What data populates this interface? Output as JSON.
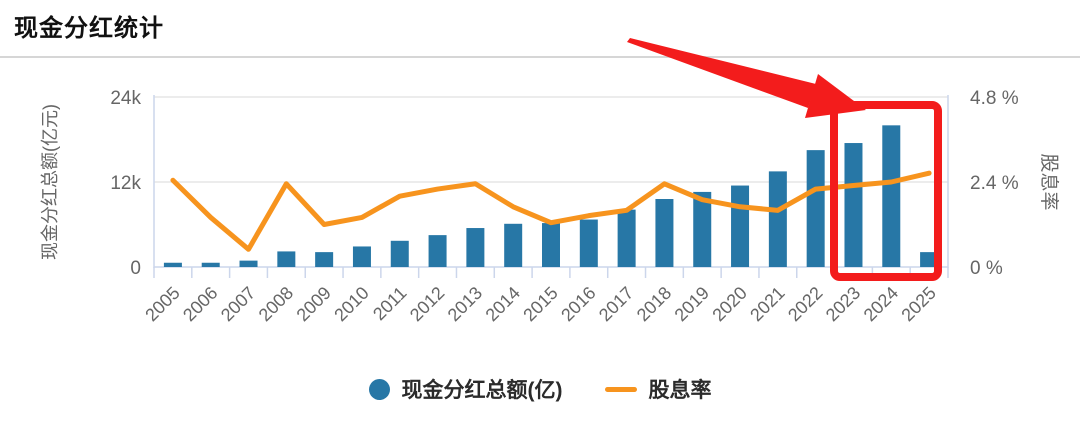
{
  "page": {
    "title": "现金分红统计"
  },
  "chart_data": {
    "type": "combo",
    "title": "现金分红统计",
    "categories": [
      "2005",
      "2006",
      "2007",
      "2008",
      "2009",
      "2010",
      "2011",
      "2012",
      "2013",
      "2014",
      "2015",
      "2016",
      "2017",
      "2018",
      "2019",
      "2020",
      "2021",
      "2022",
      "2023",
      "2024",
      "2025"
    ],
    "series": [
      {
        "name": "现金分红总额(亿)",
        "type": "bar",
        "axis": "left",
        "color": "#2777a6",
        "values": [
          600,
          600,
          900,
          2200,
          2100,
          2900,
          3700,
          4500,
          5500,
          6100,
          6200,
          6700,
          8100,
          9600,
          10600,
          11500,
          13500,
          16500,
          17500,
          20000,
          2100
        ]
      },
      {
        "name": "股息率",
        "type": "line",
        "axis": "right",
        "color": "#f7941e",
        "values": [
          2.45,
          1.4,
          0.5,
          2.35,
          1.2,
          1.4,
          2.0,
          2.2,
          2.35,
          1.7,
          1.25,
          1.45,
          1.6,
          2.35,
          1.9,
          1.7,
          1.6,
          2.2,
          2.3,
          2.4,
          2.65
        ]
      }
    ],
    "left_axis": {
      "title": "现金分红总额(亿元)",
      "min": 0,
      "max": 24000,
      "tick_values": [
        24000,
        12000,
        0
      ],
      "tick_labels": [
        "24k",
        "12k",
        "0"
      ]
    },
    "right_axis": {
      "title": "股息率",
      "min": 0,
      "max": 4.8,
      "unit": "%",
      "tick_values": [
        4.8,
        2.4,
        0
      ],
      "tick_labels": [
        "4.8 %",
        "2.4 %",
        "0 %"
      ]
    },
    "legend_position": "bottom",
    "grid": "horizontal",
    "colors": {
      "grid_line": "#e6e6e6",
      "axis_line": "#ccd6eb",
      "tick_label": "#666666",
      "axis_title": "#666666"
    }
  },
  "annotation": {
    "shape": "rectangle-with-arrow",
    "highlighted_years": "2023-2025",
    "color": "#f31c1c"
  }
}
